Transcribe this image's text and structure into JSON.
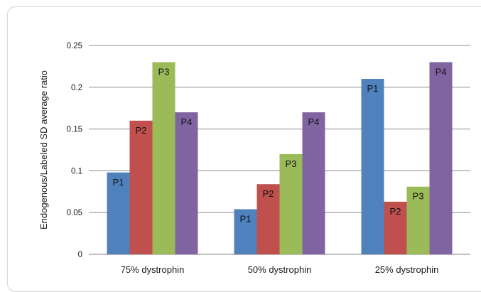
{
  "chart_data": {
    "type": "bar",
    "title": "",
    "xlabel": "",
    "ylabel": "Endogenous/Labeled SD average ratio",
    "ylim": [
      0,
      0.25
    ],
    "yticks": [
      "0",
      "0.05",
      "0.1",
      "0.15",
      "0.2",
      "0.25"
    ],
    "grid": true,
    "categories": [
      "75% dystrophin",
      "50% dystrophin",
      "25% dystrophin"
    ],
    "series": [
      {
        "name": "P1",
        "color": "#4f81bd",
        "values": [
          0.098,
          0.054,
          0.21
        ]
      },
      {
        "name": "P2",
        "color": "#c0504d",
        "values": [
          0.16,
          0.084,
          0.063
        ]
      },
      {
        "name": "P3",
        "color": "#9bbb59",
        "values": [
          0.23,
          0.12,
          0.081
        ]
      },
      {
        "name": "P4",
        "color": "#8064a2",
        "values": [
          0.17,
          0.17,
          0.23
        ]
      }
    ],
    "data_label_position": "inside-top"
  }
}
